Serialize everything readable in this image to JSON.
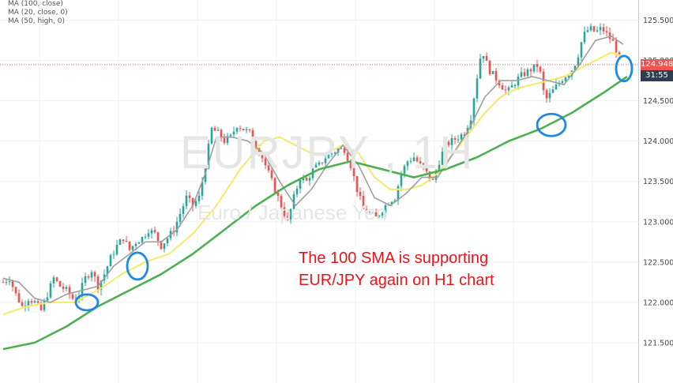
{
  "legend": {
    "ma1": "MA (100, close)",
    "ma2": "MA (20, close, 0)",
    "ma3": "MA (50, high, 0)"
  },
  "watermark": {
    "symbol": "EURJPY , 1H",
    "description": "Euro / Japanese Yen"
  },
  "annotation": {
    "line1": "The 100 SMA is supporting",
    "line2": "EUR/JPY again on H1 chart"
  },
  "price_label": {
    "value": "124.948",
    "countdown": "31:55"
  },
  "colors": {
    "up": "#26a69a",
    "down": "#ef5350",
    "ma100": "#4caf50",
    "ma20": "#9e9e9e",
    "ma50": "#f5e96b",
    "circles": "#1e88e5",
    "annotation": "#e8151b",
    "price_label": "#ef5350",
    "countdown": "#2e3d4f"
  },
  "chart_data": {
    "type": "candlestick",
    "symbol": "EURJPY",
    "timeframe": "1H",
    "ylim": [
      121.0,
      125.75
    ],
    "y_ticks": [
      121.5,
      122.0,
      122.5,
      123.0,
      123.5,
      124.0,
      124.5,
      125.0,
      125.5
    ],
    "y_tick_labels": [
      "121.500",
      "122.000",
      "122.500",
      "123.000",
      "123.500",
      "124.000",
      "124.500",
      "125.000",
      "125.500"
    ],
    "close_path": [
      [
        0,
        122.25
      ],
      [
        8,
        122.3
      ],
      [
        16,
        122.1
      ],
      [
        24,
        121.95
      ],
      [
        32,
        122.05
      ],
      [
        40,
        122.0
      ],
      [
        48,
        121.9
      ],
      [
        56,
        122.1
      ],
      [
        64,
        122.3
      ],
      [
        72,
        122.2
      ],
      [
        80,
        122.15
      ],
      [
        88,
        122.05
      ],
      [
        96,
        122.1
      ],
      [
        104,
        122.3
      ],
      [
        112,
        122.4
      ],
      [
        120,
        122.2
      ],
      [
        128,
        122.35
      ],
      [
        136,
        122.55
      ],
      [
        144,
        122.7
      ],
      [
        152,
        122.8
      ],
      [
        160,
        122.65
      ],
      [
        168,
        122.75
      ],
      [
        176,
        122.8
      ],
      [
        184,
        122.9
      ],
      [
        192,
        122.85
      ],
      [
        200,
        122.7
      ],
      [
        208,
        122.8
      ],
      [
        216,
        122.9
      ],
      [
        224,
        123.1
      ],
      [
        232,
        123.3
      ],
      [
        240,
        123.2
      ],
      [
        248,
        123.3
      ],
      [
        256,
        123.7
      ],
      [
        264,
        124.15
      ],
      [
        272,
        124.1
      ],
      [
        280,
        124.0
      ],
      [
        288,
        124.05
      ],
      [
        296,
        124.2
      ],
      [
        304,
        124.15
      ],
      [
        312,
        124.1
      ],
      [
        320,
        123.95
      ],
      [
        328,
        123.8
      ],
      [
        336,
        123.6
      ],
      [
        344,
        123.4
      ],
      [
        352,
        123.2
      ],
      [
        360,
        123.0
      ],
      [
        368,
        123.3
      ],
      [
        376,
        123.55
      ],
      [
        384,
        123.5
      ],
      [
        392,
        123.65
      ],
      [
        400,
        123.7
      ],
      [
        408,
        123.8
      ],
      [
        416,
        123.85
      ],
      [
        424,
        123.9
      ],
      [
        432,
        123.9
      ],
      [
        440,
        123.7
      ],
      [
        448,
        123.4
      ],
      [
        456,
        123.15
      ],
      [
        464,
        123.1
      ],
      [
        472,
        123.05
      ],
      [
        480,
        123.15
      ],
      [
        488,
        123.25
      ],
      [
        496,
        123.3
      ],
      [
        504,
        123.6
      ],
      [
        512,
        123.75
      ],
      [
        520,
        123.8
      ],
      [
        528,
        123.7
      ],
      [
        536,
        123.6
      ],
      [
        544,
        123.5
      ],
      [
        552,
        123.75
      ],
      [
        560,
        123.95
      ],
      [
        568,
        124.0
      ],
      [
        576,
        124.05
      ],
      [
        584,
        124.1
      ],
      [
        592,
        124.3
      ],
      [
        600,
        124.8
      ],
      [
        606,
        125.15
      ],
      [
        614,
        124.9
      ],
      [
        622,
        124.8
      ],
      [
        630,
        124.7
      ],
      [
        638,
        124.6
      ],
      [
        646,
        124.7
      ],
      [
        654,
        124.8
      ],
      [
        662,
        124.85
      ],
      [
        670,
        124.9
      ],
      [
        678,
        124.95
      ],
      [
        686,
        124.5
      ],
      [
        694,
        124.6
      ],
      [
        702,
        124.7
      ],
      [
        710,
        124.8
      ],
      [
        718,
        124.85
      ],
      [
        726,
        125.0
      ],
      [
        734,
        125.3
      ],
      [
        742,
        125.4
      ],
      [
        750,
        125.35
      ],
      [
        758,
        125.4
      ],
      [
        766,
        125.3
      ],
      [
        774,
        125.2
      ],
      [
        782,
        124.95
      ]
    ],
    "ma100_path": [
      [
        0,
        121.42
      ],
      [
        40,
        121.5
      ],
      [
        80,
        121.7
      ],
      [
        120,
        121.95
      ],
      [
        160,
        122.15
      ],
      [
        200,
        122.35
      ],
      [
        240,
        122.6
      ],
      [
        280,
        122.9
      ],
      [
        320,
        123.2
      ],
      [
        360,
        123.45
      ],
      [
        400,
        123.65
      ],
      [
        440,
        123.75
      ],
      [
        480,
        123.65
      ],
      [
        520,
        123.55
      ],
      [
        560,
        123.65
      ],
      [
        600,
        123.8
      ],
      [
        640,
        124.0
      ],
      [
        680,
        124.15
      ],
      [
        720,
        124.35
      ],
      [
        760,
        124.6
      ],
      [
        790,
        124.8
      ]
    ],
    "ma20_path": [
      [
        0,
        122.3
      ],
      [
        20,
        122.25
      ],
      [
        40,
        122.05
      ],
      [
        60,
        122.0
      ],
      [
        80,
        122.1
      ],
      [
        100,
        122.15
      ],
      [
        120,
        122.2
      ],
      [
        140,
        122.45
      ],
      [
        160,
        122.6
      ],
      [
        180,
        122.75
      ],
      [
        200,
        122.75
      ],
      [
        220,
        122.9
      ],
      [
        240,
        123.2
      ],
      [
        256,
        123.6
      ],
      [
        270,
        124.05
      ],
      [
        290,
        124.05
      ],
      [
        310,
        124.0
      ],
      [
        330,
        123.85
      ],
      [
        350,
        123.5
      ],
      [
        370,
        123.2
      ],
      [
        390,
        123.4
      ],
      [
        410,
        123.7
      ],
      [
        430,
        123.95
      ],
      [
        450,
        123.7
      ],
      [
        470,
        123.3
      ],
      [
        490,
        123.2
      ],
      [
        510,
        123.35
      ],
      [
        530,
        123.55
      ],
      [
        550,
        123.55
      ],
      [
        570,
        123.85
      ],
      [
        590,
        124.15
      ],
      [
        610,
        124.55
      ],
      [
        630,
        124.75
      ],
      [
        650,
        124.75
      ],
      [
        670,
        124.8
      ],
      [
        690,
        124.75
      ],
      [
        710,
        124.7
      ],
      [
        730,
        124.95
      ],
      [
        750,
        125.25
      ],
      [
        770,
        125.3
      ],
      [
        785,
        125.2
      ]
    ],
    "ma50_path": [
      [
        0,
        121.85
      ],
      [
        30,
        121.95
      ],
      [
        60,
        122.0
      ],
      [
        90,
        122.0
      ],
      [
        120,
        122.15
      ],
      [
        150,
        122.35
      ],
      [
        180,
        122.5
      ],
      [
        210,
        122.6
      ],
      [
        240,
        122.85
      ],
      [
        270,
        123.2
      ],
      [
        300,
        123.65
      ],
      [
        330,
        124.0
      ],
      [
        350,
        124.05
      ],
      [
        370,
        123.95
      ],
      [
        390,
        123.85
      ],
      [
        410,
        123.85
      ],
      [
        430,
        123.95
      ],
      [
        450,
        123.85
      ],
      [
        470,
        123.55
      ],
      [
        490,
        123.4
      ],
      [
        510,
        123.4
      ],
      [
        530,
        123.45
      ],
      [
        550,
        123.6
      ],
      [
        570,
        123.85
      ],
      [
        590,
        124.1
      ],
      [
        610,
        124.35
      ],
      [
        630,
        124.55
      ],
      [
        650,
        124.65
      ],
      [
        670,
        124.7
      ],
      [
        690,
        124.75
      ],
      [
        710,
        124.8
      ],
      [
        730,
        124.9
      ],
      [
        750,
        125.0
      ],
      [
        770,
        125.1
      ],
      [
        785,
        125.05
      ]
    ],
    "support_touches": [
      {
        "x": 106,
        "y": 122.0
      },
      {
        "x": 170,
        "y": 122.45
      },
      {
        "x": 694,
        "y": 124.2
      },
      {
        "x": 786,
        "y": 124.9
      }
    ],
    "last_price": 124.948
  }
}
